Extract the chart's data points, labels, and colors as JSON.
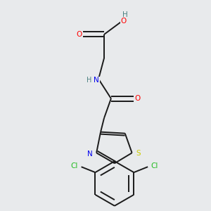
{
  "background_color": "#e8eaec",
  "figure_size": [
    3.0,
    3.0
  ],
  "dpi": 100,
  "bond_color": "#1a1a1a",
  "bond_lw": 1.4,
  "label_fontsize": 7.5,
  "colors": {
    "O": "#ff0000",
    "H": "#4a8080",
    "N": "#0000ee",
    "S": "#cccc00",
    "Cl": "#22bb22",
    "C": "#1a1a1a"
  }
}
